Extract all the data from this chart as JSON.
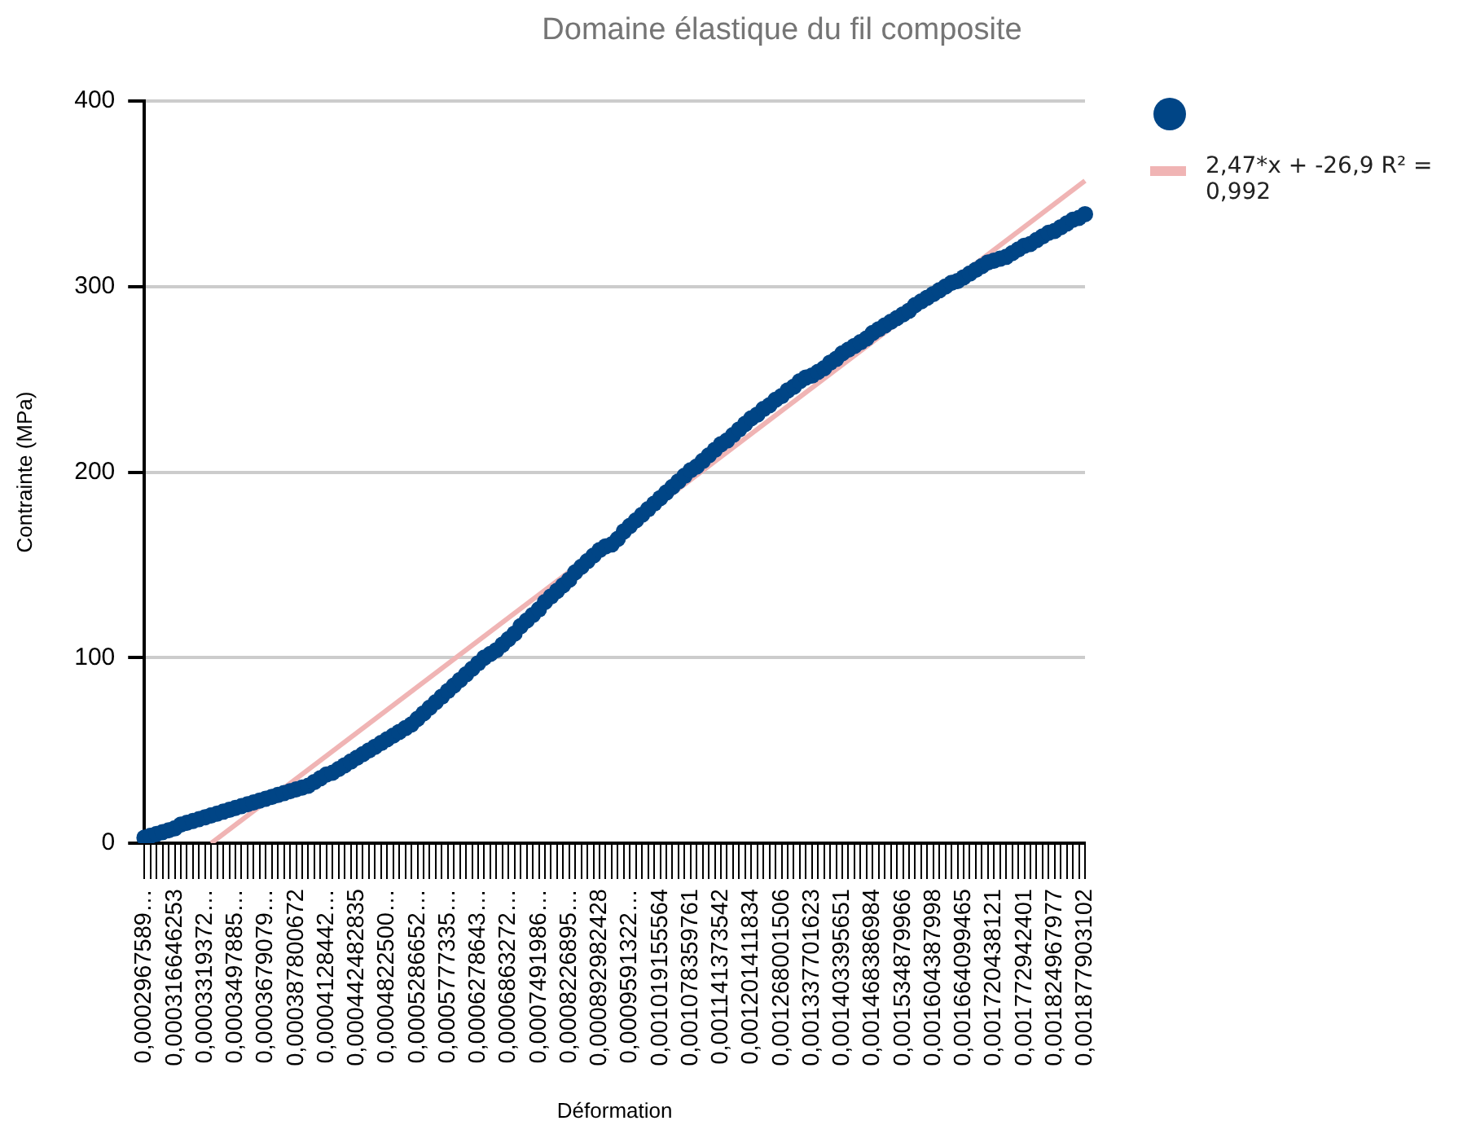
{
  "chart_data": {
    "type": "scatter",
    "title": "Domaine élastique du fil composite",
    "xlabel": "Déformation",
    "ylabel": "Contrainte (MPa)",
    "categories": [
      "0,0002967589…",
      null,
      null,
      null,
      null,
      "0,000316646253",
      null,
      null,
      null,
      null,
      "0,0003319372…",
      null,
      null,
      null,
      null,
      "0,0003497885…",
      null,
      null,
      null,
      null,
      "0,0003679079…",
      null,
      null,
      null,
      null,
      "0,000387800672",
      null,
      null,
      null,
      null,
      "0,0004128442…",
      null,
      null,
      null,
      null,
      "0,000442482835",
      null,
      null,
      null,
      null,
      "0,0004822500…",
      null,
      null,
      null,
      null,
      "0,0005286652…",
      null,
      null,
      null,
      null,
      "0,0005777335…",
      null,
      null,
      null,
      null,
      "0,0006278643…",
      null,
      null,
      null,
      null,
      "0,0006863272…",
      null,
      null,
      null,
      null,
      "0,0007491986…",
      null,
      null,
      null,
      null,
      "0,0008226895…",
      null,
      null,
      null,
      null,
      "0,000892982428",
      null,
      null,
      null,
      null,
      "0,0009591322…",
      null,
      null,
      null,
      null,
      "0,001019155564",
      null,
      null,
      null,
      null,
      "0,001078359761",
      null,
      null,
      null,
      null,
      "0,001141373542",
      null,
      null,
      null,
      null,
      "0,001201411834",
      null,
      null,
      null,
      null,
      "0,001268001506",
      null,
      null,
      null,
      null,
      "0,001337701623",
      null,
      null,
      null,
      null,
      "0,001403395651",
      null,
      null,
      null,
      null,
      "0,001468386984",
      null,
      null,
      null,
      null,
      "0,001534879966",
      null,
      null,
      null,
      null,
      "0,001604387998",
      null,
      null,
      null,
      null,
      "0,001664099465",
      null,
      null,
      null,
      null,
      "0,001720438121",
      null,
      null,
      null,
      null,
      "0,001772942401",
      null,
      null,
      null,
      null,
      "0,001824967977",
      null,
      null,
      null,
      null,
      "0,001877903102"
    ],
    "series": [
      {
        "type": "scatter",
        "color": "#004586",
        "marker": "circle",
        "values": [
          3,
          4,
          5,
          6,
          7,
          8,
          10,
          11,
          12,
          13,
          14,
          15,
          16,
          17,
          18,
          19,
          20,
          21,
          22,
          23,
          24,
          25,
          26,
          27,
          28,
          29,
          30,
          31,
          33,
          35,
          37,
          38,
          40,
          42,
          44,
          46,
          48,
          50,
          52,
          54,
          56,
          58,
          60,
          62,
          64,
          67,
          70,
          73,
          76,
          79,
          82,
          85,
          88,
          91,
          94,
          97,
          100,
          102,
          104,
          107,
          110,
          113,
          117,
          120,
          123,
          126,
          130,
          133,
          136,
          139,
          142,
          146,
          149,
          152,
          155,
          158,
          160,
          161,
          164,
          168,
          171,
          174,
          177,
          180,
          183,
          186,
          189,
          192,
          195,
          198,
          201,
          203,
          206,
          209,
          212,
          215,
          217,
          220,
          223,
          226,
          229,
          231,
          234,
          236,
          239,
          241,
          244,
          246,
          249,
          251,
          252,
          254,
          256,
          259,
          261,
          264,
          266,
          268,
          270,
          272,
          275,
          277,
          279,
          281,
          283,
          285,
          287,
          290,
          292,
          294,
          296,
          298,
          300,
          302,
          303,
          305,
          307,
          309,
          311,
          313,
          314,
          315,
          316,
          318,
          320,
          322,
          323,
          325,
          327,
          329,
          330,
          332,
          334,
          336,
          337,
          339
        ]
      },
      {
        "type": "line",
        "name": "2,47*x + -26,9 R² = 0,992",
        "color": "#f0b4b4",
        "values": [
          null,
          null,
          null,
          null,
          null,
          null,
          null,
          null,
          null,
          null,
          null,
          0,
          null,
          null,
          null,
          null,
          null,
          null,
          null,
          null,
          null,
          null,
          null,
          null,
          null,
          null,
          null,
          null,
          null,
          null,
          null,
          null,
          null,
          null,
          null,
          null,
          null,
          null,
          null,
          null,
          null,
          null,
          null,
          null,
          null,
          null,
          null,
          null,
          null,
          null,
          null,
          null,
          null,
          null,
          null,
          null,
          null,
          null,
          null,
          null,
          null,
          null,
          null,
          null,
          null,
          null,
          null,
          null,
          null,
          null,
          null,
          null,
          null,
          null,
          null,
          null,
          null,
          null,
          null,
          null,
          null,
          null,
          null,
          null,
          null,
          null,
          null,
          null,
          null,
          null,
          null,
          null,
          null,
          null,
          null,
          null,
          null,
          null,
          null,
          null,
          null,
          null,
          null,
          null,
          null,
          null,
          null,
          null,
          null,
          null,
          null,
          null,
          null,
          null,
          null,
          null,
          null,
          null,
          null,
          null,
          null,
          null,
          null,
          null,
          null,
          null,
          null,
          null,
          null,
          null,
          null,
          null,
          null,
          null,
          null,
          null,
          null,
          null,
          null,
          null,
          null,
          null,
          null,
          null,
          null,
          null,
          null,
          null,
          null,
          null,
          null,
          null,
          null,
          null,
          null,
          357
        ]
      }
    ],
    "ylim": [
      0,
      400
    ],
    "yticks": [
      0,
      100,
      200,
      300,
      400
    ],
    "grid": "y",
    "legend": "top right"
  }
}
